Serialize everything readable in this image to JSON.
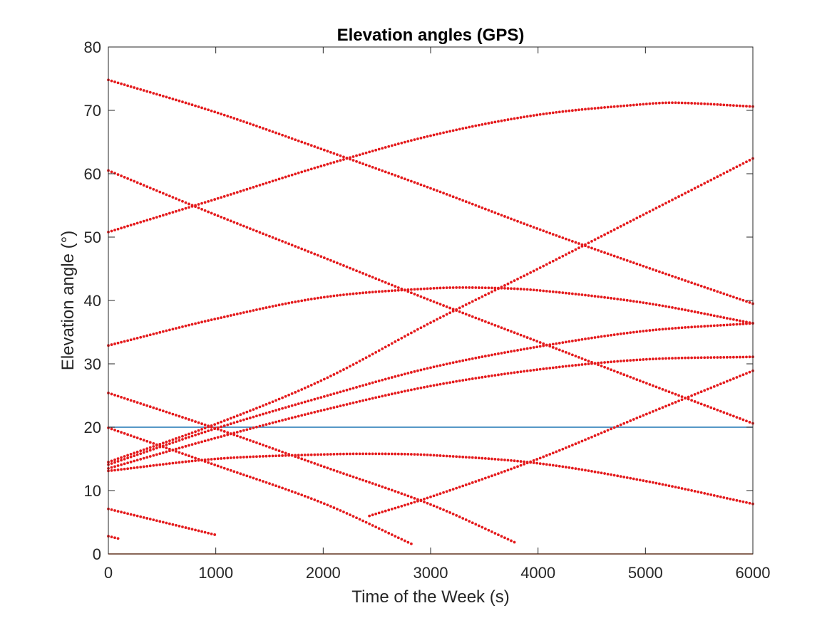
{
  "chart_data": {
    "type": "scatter",
    "title": "Elevation angles (GPS)",
    "xlabel": "Time of the Week (s)",
    "ylabel": "Elevation angle (°)",
    "xlim": [
      0,
      6000
    ],
    "ylim": [
      0,
      80
    ],
    "xticks": [
      "0",
      "1000",
      "2000",
      "3000",
      "4000",
      "5000",
      "6000"
    ],
    "yticks": [
      "0",
      "10",
      "20",
      "30",
      "40",
      "50",
      "60",
      "70",
      "80"
    ],
    "grid": false,
    "colors": {
      "points": "#e41a1c",
      "mask_line": "#1f77b4",
      "zero_line": "#d95319",
      "axes": "#262626"
    },
    "reference_lines": [
      {
        "y": 20,
        "color": "#1f77b4"
      },
      {
        "y": 0,
        "color": "#d95319"
      }
    ],
    "series": [
      {
        "points": [
          [
            0,
            74.8
          ],
          [
            1000,
            69.7
          ],
          [
            2000,
            63.8
          ],
          [
            3000,
            57.7
          ],
          [
            4000,
            51.3
          ],
          [
            5000,
            45.3
          ],
          [
            6000,
            39.5
          ]
        ]
      },
      {
        "points": [
          [
            0,
            50.8
          ],
          [
            1000,
            56.0
          ],
          [
            2000,
            61.3
          ],
          [
            3000,
            66.0
          ],
          [
            4000,
            69.3
          ],
          [
            5000,
            71.0
          ],
          [
            5300,
            71.2
          ],
          [
            6000,
            70.6
          ]
        ]
      },
      {
        "points": [
          [
            0,
            60.5
          ],
          [
            1000,
            53.5
          ],
          [
            2000,
            46.8
          ],
          [
            3000,
            40.0
          ],
          [
            4000,
            33.5
          ],
          [
            5000,
            27.0
          ],
          [
            6000,
            20.6
          ]
        ]
      },
      {
        "points": [
          [
            0,
            32.9
          ],
          [
            1000,
            37.1
          ],
          [
            2000,
            40.5
          ],
          [
            3000,
            41.9
          ],
          [
            3500,
            42.0
          ],
          [
            4000,
            41.6
          ],
          [
            5000,
            39.6
          ],
          [
            6000,
            36.4
          ]
        ]
      },
      {
        "points": [
          [
            0,
            14.5
          ],
          [
            1000,
            20.5
          ],
          [
            2000,
            27.5
          ],
          [
            3000,
            36.5
          ],
          [
            4000,
            45.0
          ],
          [
            5000,
            53.7
          ],
          [
            6000,
            62.4
          ]
        ]
      },
      {
        "points": [
          [
            0,
            14.1
          ],
          [
            1000,
            19.8
          ],
          [
            2000,
            24.8
          ],
          [
            3000,
            29.4
          ],
          [
            4000,
            32.7
          ],
          [
            5000,
            35.2
          ],
          [
            6000,
            36.4
          ]
        ]
      },
      {
        "points": [
          [
            0,
            13.5
          ],
          [
            1000,
            18.3
          ],
          [
            2000,
            22.7
          ],
          [
            3000,
            26.5
          ],
          [
            4000,
            29.1
          ],
          [
            5000,
            30.7
          ],
          [
            6000,
            31.1
          ]
        ]
      },
      {
        "points": [
          [
            0,
            13.1
          ],
          [
            1000,
            15.0
          ],
          [
            2000,
            15.7
          ],
          [
            2500,
            15.8
          ],
          [
            3000,
            15.6
          ],
          [
            4000,
            14.3
          ],
          [
            5000,
            11.5
          ],
          [
            6000,
            7.9
          ]
        ]
      },
      {
        "points": [
          [
            0,
            25.4
          ],
          [
            1000,
            19.8
          ],
          [
            2000,
            13.8
          ],
          [
            3000,
            7.8
          ],
          [
            3800,
            1.7
          ]
        ]
      },
      {
        "points": [
          [
            0,
            19.9
          ],
          [
            1000,
            14.0
          ],
          [
            2000,
            8.0
          ],
          [
            2820,
            1.6
          ]
        ]
      },
      {
        "points": [
          [
            2430,
            6.0
          ],
          [
            3000,
            9.0
          ],
          [
            4000,
            15.0
          ],
          [
            5000,
            22.0
          ],
          [
            6000,
            28.9
          ]
        ]
      },
      {
        "points": [
          [
            0,
            7.1
          ],
          [
            1000,
            3.0
          ]
        ]
      },
      {
        "points": [
          [
            0,
            2.8
          ],
          [
            100,
            2.4
          ]
        ]
      }
    ]
  }
}
